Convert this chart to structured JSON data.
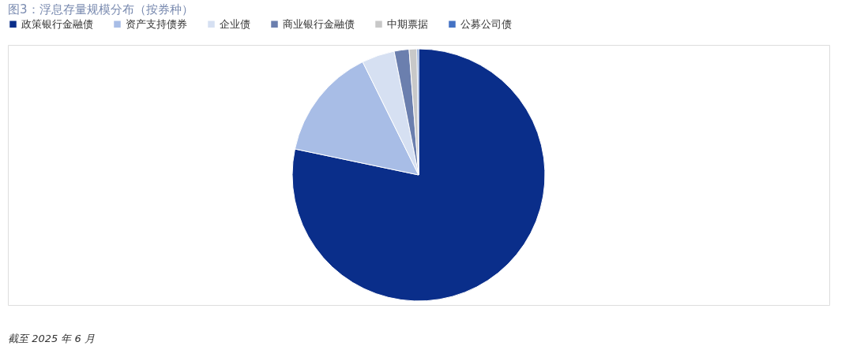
{
  "chart_data": {
    "type": "pie",
    "title": "图3：浮息存量规模分布（按券种）",
    "categories": [
      "政策银行金融债",
      "资产支持债券",
      "企业债",
      "商业银行金融债",
      "中期票据",
      "公募公司债"
    ],
    "values": [
      78.3,
      14.4,
      4.2,
      1.9,
      1.0,
      0.2
    ],
    "colors": [
      "#0a2e8a",
      "#a8bde6",
      "#d6e0f2",
      "#6b7fae",
      "#c8c8c8",
      "#4472c4"
    ],
    "legend": "top",
    "annotations": [
      "截至 2025 年 6 月"
    ]
  }
}
